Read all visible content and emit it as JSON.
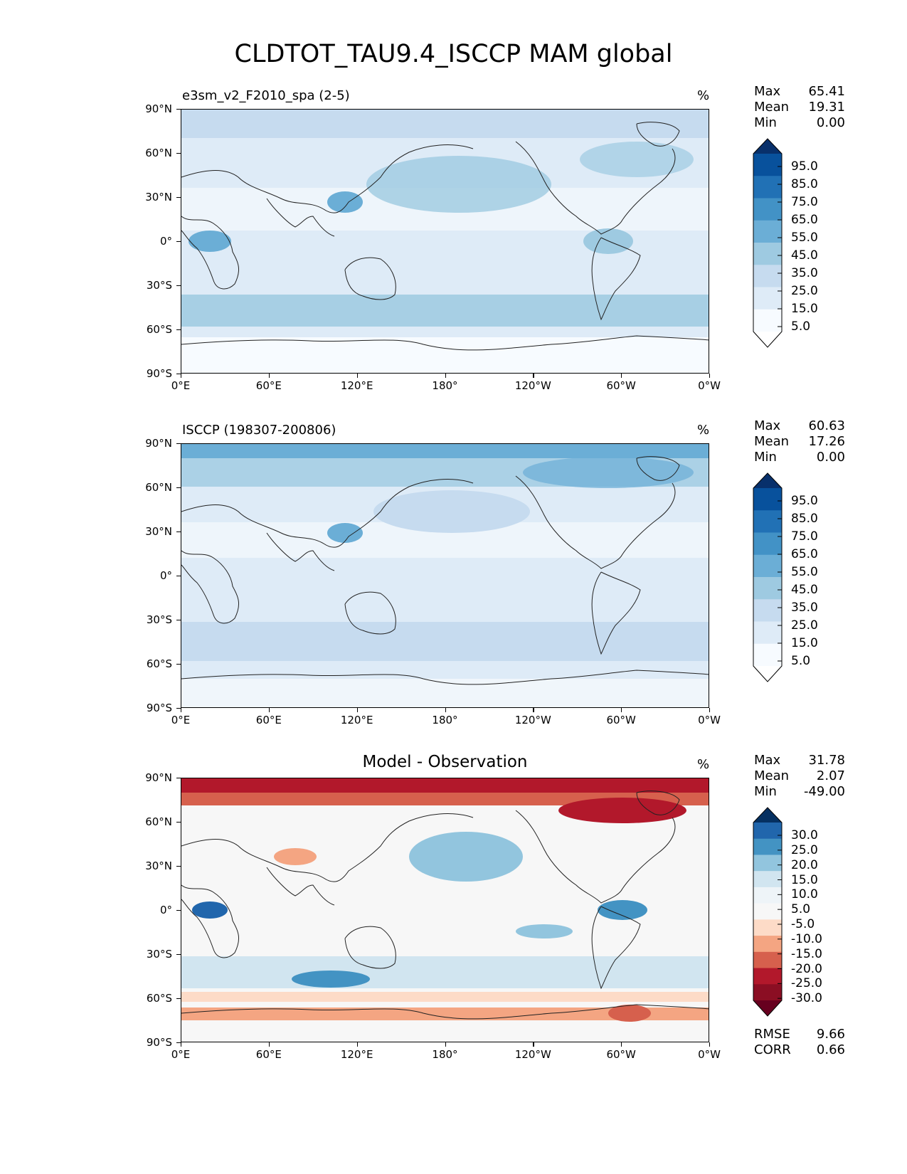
{
  "title": "CLDTOT_TAU9.4_ISCCP MAM global",
  "lat_ticks": [
    "90°N",
    "60°N",
    "30°N",
    "0°",
    "30°S",
    "60°S",
    "90°S"
  ],
  "lon_ticks": [
    "0°E",
    "60°E",
    "120°E",
    "180°",
    "120°W",
    "60°W",
    "0°W"
  ],
  "panels": [
    {
      "title": "e3sm_v2_F2010_spa (2-5)",
      "units": "%",
      "stats": {
        "max_label": "Max",
        "max": "65.41",
        "mean_label": "Mean",
        "mean": "19.31",
        "min_label": "Min",
        "min": "0.00"
      },
      "colorbar": {
        "labels": [
          "95.0",
          "85.0",
          "75.0",
          "65.0",
          "55.0",
          "45.0",
          "35.0",
          "25.0",
          "15.0",
          "5.0"
        ],
        "colors": [
          "#08306b",
          "#08519c",
          "#2171b5",
          "#4292c6",
          "#6baed6",
          "#9ecae1",
          "#c6dbef",
          "#deebf7",
          "#f7fbff",
          "#ffffff"
        ]
      }
    },
    {
      "title": "ISCCP (198307-200806)",
      "units": "%",
      "stats": {
        "max_label": "Max",
        "max": "60.63",
        "mean_label": "Mean",
        "mean": "17.26",
        "min_label": "Min",
        "min": "0.00"
      },
      "colorbar": {
        "labels": [
          "95.0",
          "85.0",
          "75.0",
          "65.0",
          "55.0",
          "45.0",
          "35.0",
          "25.0",
          "15.0",
          "5.0"
        ],
        "colors": [
          "#08306b",
          "#08519c",
          "#2171b5",
          "#4292c6",
          "#6baed6",
          "#9ecae1",
          "#c6dbef",
          "#deebf7",
          "#f7fbff",
          "#ffffff"
        ]
      }
    },
    {
      "title": "Model - Observation",
      "units": "%",
      "stats": {
        "max_label": "Max",
        "max": "31.78",
        "mean_label": "Mean",
        "mean": "2.07",
        "min_label": "Min",
        "min": "-49.00"
      },
      "colorbar": {
        "labels": [
          "30.0",
          "25.0",
          "20.0",
          "15.0",
          "10.0",
          "5.0",
          "-5.0",
          "-10.0",
          "-15.0",
          "-20.0",
          "-25.0",
          "-30.0"
        ],
        "colors": [
          "#053061",
          "#2166ac",
          "#4393c3",
          "#92c5de",
          "#d1e5f0",
          "#eef4f8",
          "#f7f7f7",
          "#fddbc7",
          "#f4a582",
          "#d6604d",
          "#b2182b",
          "#8b0e23",
          "#67001f"
        ]
      },
      "metrics": {
        "rmse_label": "RMSE",
        "rmse": "9.66",
        "corr_label": "CORR",
        "corr": "0.66"
      }
    }
  ]
}
